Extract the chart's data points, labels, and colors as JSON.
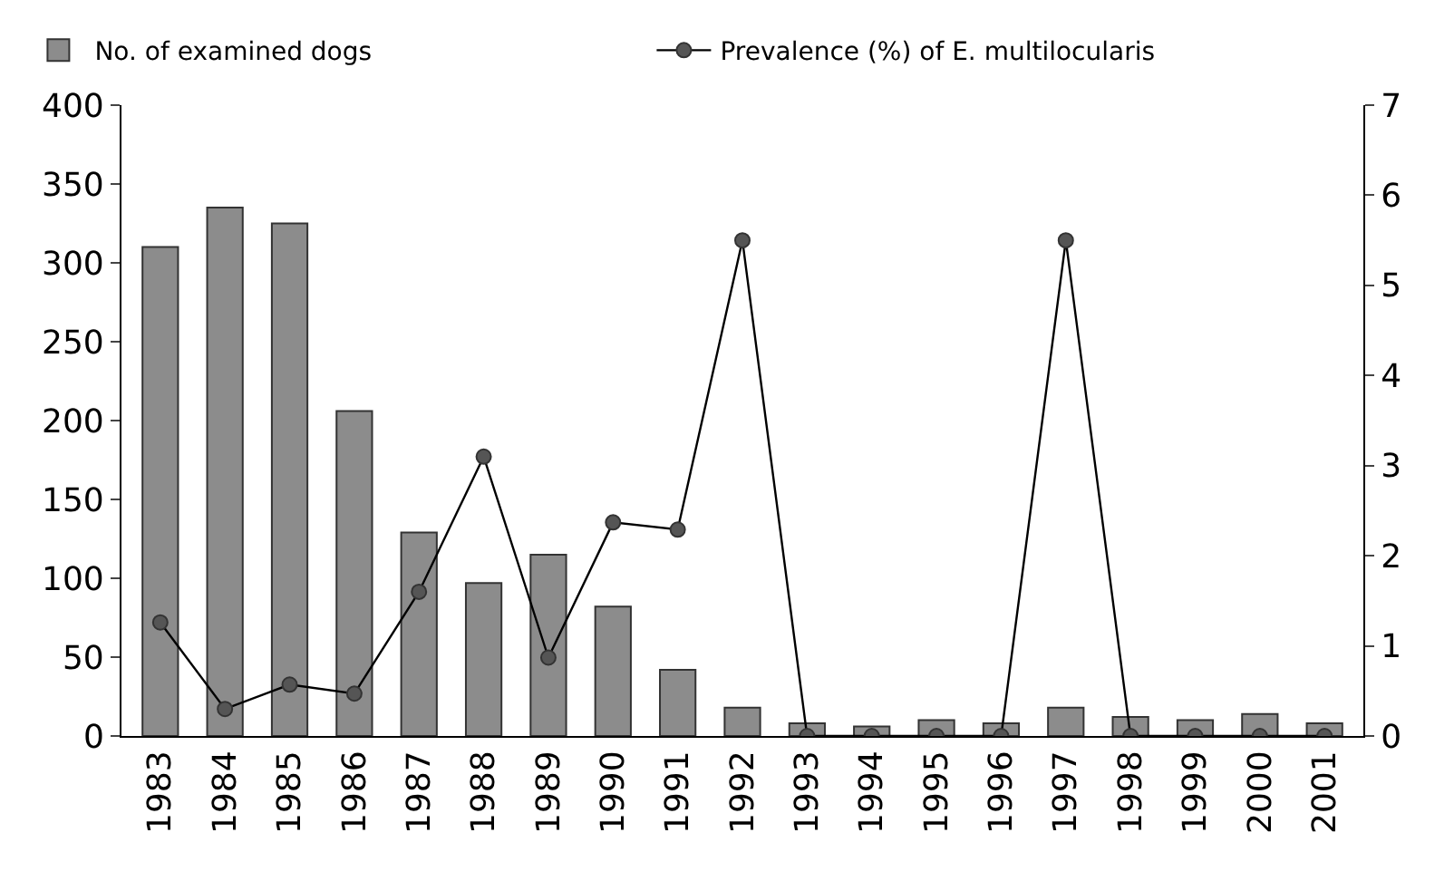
{
  "chart_data": {
    "type": "bar",
    "categories": [
      "1983",
      "1984",
      "1985",
      "1986",
      "1987",
      "1988",
      "1989",
      "1990",
      "1991",
      "1992",
      "1993",
      "1994",
      "1995",
      "1996",
      "1997",
      "1998",
      "1999",
      "2000",
      "2001"
    ],
    "series": [
      {
        "name": "No. of examined dogs",
        "color": "#8c8c8c",
        "values": [
          310,
          335,
          325,
          206,
          129,
          97,
          115,
          82,
          42,
          18,
          8,
          6,
          10,
          8,
          18,
          12,
          10,
          14,
          8
        ]
      },
      {
        "name": "Prevalence (%) of E. multilocularis",
        "type": "line",
        "axis": "y2",
        "color": "#555555",
        "marker": "circle",
        "values": [
          1.26,
          0.3,
          0.57,
          0.47,
          1.6,
          3.1,
          0.87,
          2.37,
          2.29,
          5.5,
          0,
          0,
          0,
          0,
          5.5,
          0,
          0,
          0,
          0
        ]
      }
    ],
    "ylim": [
      0,
      400
    ],
    "yticks": [
      0,
      50,
      100,
      150,
      200,
      250,
      300,
      350,
      400
    ],
    "y2lim": [
      0,
      7
    ],
    "y2ticks": [
      0,
      1,
      2,
      3,
      4,
      5,
      6,
      7
    ],
    "legend": "top"
  }
}
